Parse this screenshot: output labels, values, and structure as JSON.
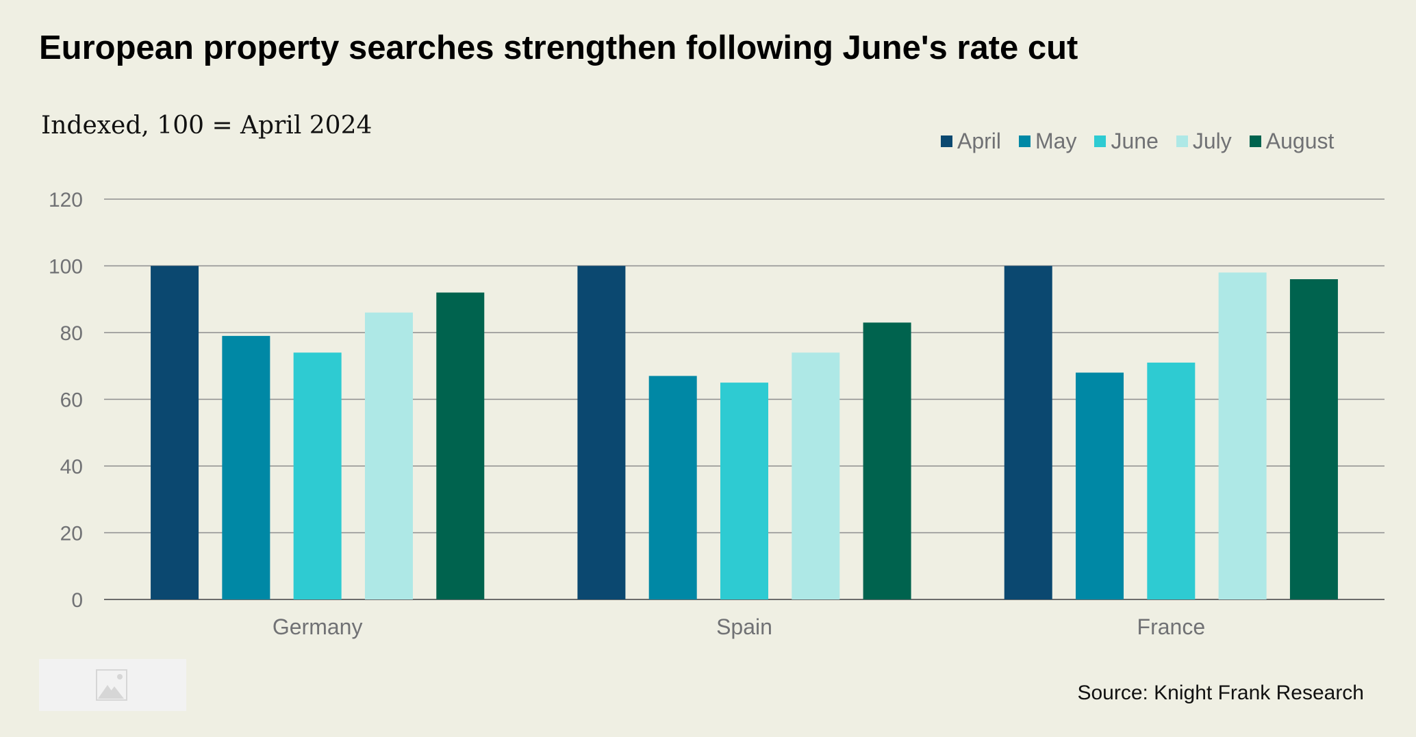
{
  "header": {
    "title": "European property searches strengthen following June's rate cut",
    "subtitle": "Indexed, 100 = April 2024"
  },
  "footer": {
    "source": "Source: Knight Frank Research",
    "image_icon": "image-placeholder-icon"
  },
  "chart_data": {
    "type": "bar",
    "title": "European property searches strengthen following June's rate cut",
    "subtitle": "Indexed, 100 = April 2024",
    "xlabel": "",
    "ylabel": "",
    "categories": [
      "Germany",
      "Spain",
      "France"
    ],
    "series": [
      {
        "name": "April",
        "color": "#0b4870",
        "values": [
          100,
          100,
          100
        ]
      },
      {
        "name": "May",
        "color": "#0088a5",
        "values": [
          79,
          67,
          68
        ]
      },
      {
        "name": "June",
        "color": "#2ecbd2",
        "values": [
          74,
          65,
          71
        ]
      },
      {
        "name": "July",
        "color": "#aee8e6",
        "values": [
          86,
          74,
          98
        ]
      },
      {
        "name": "August",
        "color": "#00634e",
        "values": [
          92,
          83,
          96
        ]
      }
    ],
    "ylim": [
      0,
      120
    ],
    "yticks": [
      "0",
      "20",
      "40",
      "60",
      "80",
      "100",
      "120"
    ],
    "grid": true,
    "legend_position": "top-right"
  }
}
